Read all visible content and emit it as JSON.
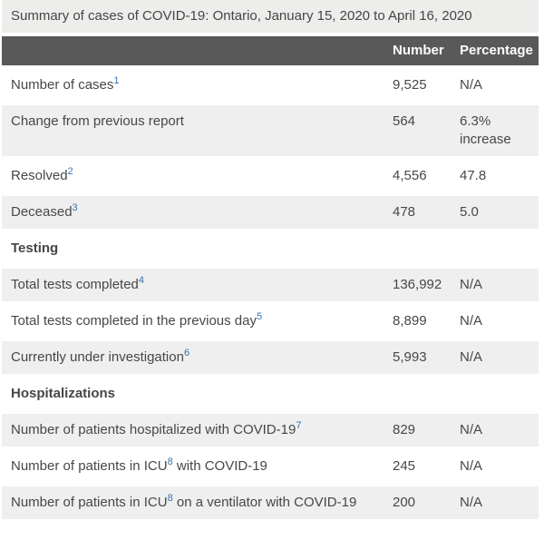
{
  "title": "Summary of cases of COVID-19: Ontario, January 15, 2020 to April 16, 2020",
  "columns": {
    "label": "",
    "number": "Number",
    "percentage": "Percentage"
  },
  "colors": {
    "caption_background": "#ededec",
    "header_background": "#595959",
    "header_text": "#ffffff",
    "row_shade": "#efefef",
    "body_text": "#474747",
    "footnote_link": "#3a70b2"
  },
  "rows": [
    {
      "pre": "Number of cases",
      "sup": "1",
      "post": "",
      "number": "9,525",
      "percentage": "N/A"
    },
    {
      "pre": "Change from previous report",
      "sup": "",
      "post": "",
      "number": "564",
      "percentage": "6.3% increase"
    },
    {
      "pre": "Resolved",
      "sup": "2",
      "post": "",
      "number": "4,556",
      "percentage": "47.8"
    },
    {
      "pre": "Deceased",
      "sup": "3",
      "post": "",
      "number": "478",
      "percentage": "5.0"
    },
    {
      "section": "Testing"
    },
    {
      "pre": "Total tests completed",
      "sup": "4",
      "post": "",
      "number": "136,992",
      "percentage": "N/A"
    },
    {
      "pre": "Total tests completed in the previous day",
      "sup": "5",
      "post": "",
      "number": "8,899",
      "percentage": "N/A"
    },
    {
      "pre": "Currently under investigation",
      "sup": "6",
      "post": "",
      "number": "5,993",
      "percentage": "N/A"
    },
    {
      "section": "Hospitalizations"
    },
    {
      "pre": "Number of patients hospitalized with COVID-19",
      "sup": "7",
      "post": "",
      "number": "829",
      "percentage": "N/A"
    },
    {
      "pre": "Number of patients in ICU",
      "sup": "8",
      "post": " with COVID-19",
      "number": "245",
      "percentage": "N/A"
    },
    {
      "pre": "Number of patients in ICU",
      "sup": "8",
      "post": " on a ventilator with COVID-19",
      "number": "200",
      "percentage": "N/A"
    }
  ]
}
